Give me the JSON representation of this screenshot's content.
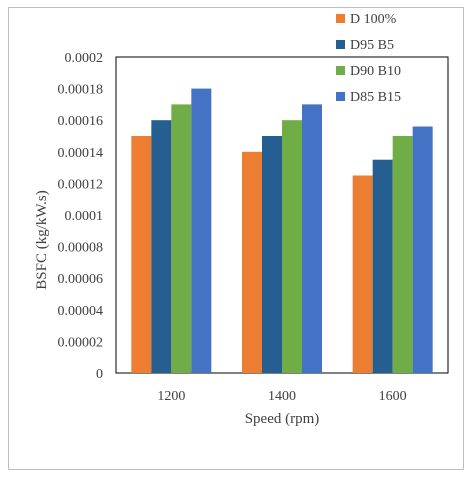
{
  "chart_data": {
    "type": "bar",
    "title": "",
    "xlabel": "Speed (rpm)",
    "ylabel": "BSFC (kg/kW.s)",
    "categories": [
      "1200",
      "1400",
      "1600"
    ],
    "ylim": [
      0,
      0.0002
    ],
    "yticks": [
      "0",
      "0.00002",
      "0.00004",
      "0.00006",
      "0.00008",
      "0.0001",
      "0.00012",
      "0.00014",
      "0.00016",
      "0.00018",
      "0.0002"
    ],
    "ytick_values": [
      0,
      2e-05,
      4e-05,
      6e-05,
      8e-05,
      0.0001,
      0.00012,
      0.00014,
      0.00016,
      0.00018,
      0.0002
    ],
    "grid": false,
    "legend_position": "top-right",
    "series": [
      {
        "name": "D 100%",
        "color": "#ED7D31",
        "values": [
          0.00015,
          0.00014,
          0.000125
        ]
      },
      {
        "name": "D95 B5",
        "color": "#255E91",
        "values": [
          0.00016,
          0.00015,
          0.000135
        ]
      },
      {
        "name": "D90 B10",
        "color": "#70AD47",
        "values": [
          0.00017,
          0.00016,
          0.00015
        ]
      },
      {
        "name": "D85 B15",
        "color": "#4472C4",
        "values": [
          0.00018,
          0.00017,
          0.000156
        ]
      }
    ]
  }
}
